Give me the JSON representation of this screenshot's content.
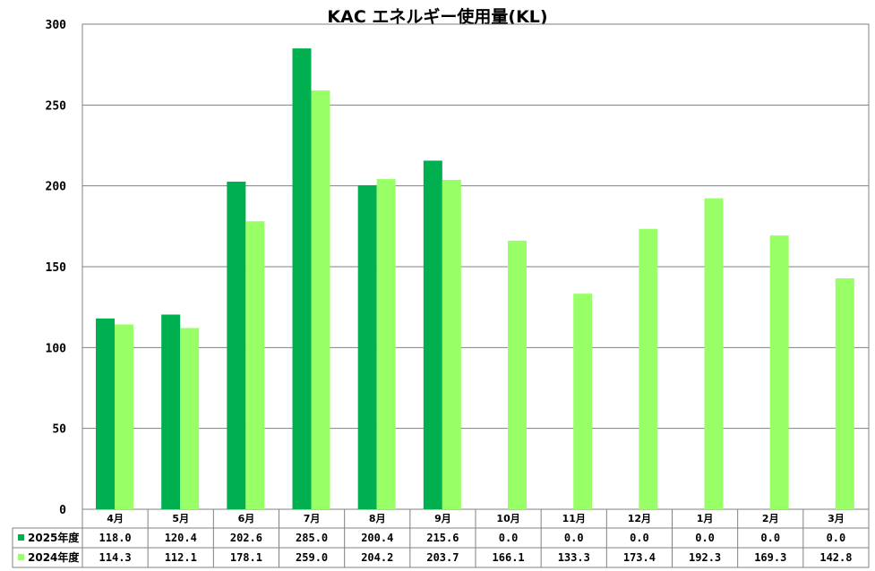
{
  "chart_data": {
    "type": "bar",
    "title": "KAC エネルギー使用量(KL)",
    "categories": [
      "4月",
      "5月",
      "6月",
      "7月",
      "8月",
      "9月",
      "10月",
      "11月",
      "12月",
      "1月",
      "2月",
      "3月"
    ],
    "series": [
      {
        "name": "2025年度",
        "color": "#00b050",
        "values": [
          118.0,
          120.4,
          202.6,
          285.0,
          200.4,
          215.6,
          0.0,
          0.0,
          0.0,
          0.0,
          0.0,
          0.0
        ],
        "labels": [
          "118.0",
          "120.4",
          "202.6",
          "285.0",
          "200.4",
          "215.6",
          "0.0",
          "0.0",
          "0.0",
          "0.0",
          "0.0",
          "0.0"
        ]
      },
      {
        "name": "2024年度",
        "color": "#99ff66",
        "values": [
          114.3,
          112.1,
          178.1,
          259.0,
          204.2,
          203.7,
          166.1,
          133.3,
          173.4,
          192.3,
          169.3,
          142.8
        ],
        "labels": [
          "114.3",
          "112.1",
          "178.1",
          "259.0",
          "204.2",
          "203.7",
          "166.1",
          "133.3",
          "173.4",
          "192.3",
          "169.3",
          "142.8"
        ]
      }
    ],
    "yticks": [
      "0",
      "50",
      "100",
      "150",
      "200",
      "250",
      "300"
    ],
    "ylim": [
      0,
      300
    ],
    "grid": true,
    "legend": "data-table"
  }
}
